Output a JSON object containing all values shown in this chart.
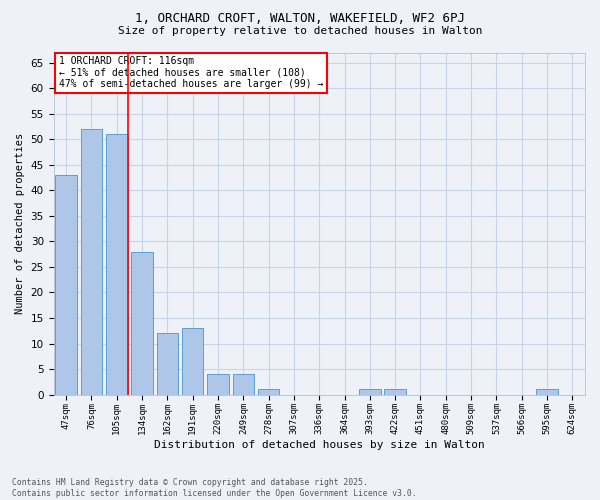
{
  "title1": "1, ORCHARD CROFT, WALTON, WAKEFIELD, WF2 6PJ",
  "title2": "Size of property relative to detached houses in Walton",
  "xlabel": "Distribution of detached houses by size in Walton",
  "ylabel": "Number of detached properties",
  "categories": [
    "47sqm",
    "76sqm",
    "105sqm",
    "134sqm",
    "162sqm",
    "191sqm",
    "220sqm",
    "249sqm",
    "278sqm",
    "307sqm",
    "336sqm",
    "364sqm",
    "393sqm",
    "422sqm",
    "451sqm",
    "480sqm",
    "509sqm",
    "537sqm",
    "566sqm",
    "595sqm",
    "624sqm"
  ],
  "values": [
    43,
    52,
    51,
    28,
    12,
    13,
    4,
    4,
    1,
    0,
    0,
    0,
    1,
    1,
    0,
    0,
    0,
    0,
    0,
    1,
    0
  ],
  "bar_color": "#aec6e8",
  "bar_edge_color": "#5a9fd4",
  "redline_x": 2.425,
  "annotation_line1": "1 ORCHARD CROFT: 116sqm",
  "annotation_line2": "← 51% of detached houses are smaller (108)",
  "annotation_line3": "47% of semi-detached houses are larger (99) →",
  "ylim": [
    0,
    67
  ],
  "yticks": [
    0,
    5,
    10,
    15,
    20,
    25,
    30,
    35,
    40,
    45,
    50,
    55,
    60,
    65
  ],
  "footer1": "Contains HM Land Registry data © Crown copyright and database right 2025.",
  "footer2": "Contains public sector information licensed under the Open Government Licence v3.0.",
  "bg_color": "#eef2f8",
  "grid_color": "#c8d4e8"
}
